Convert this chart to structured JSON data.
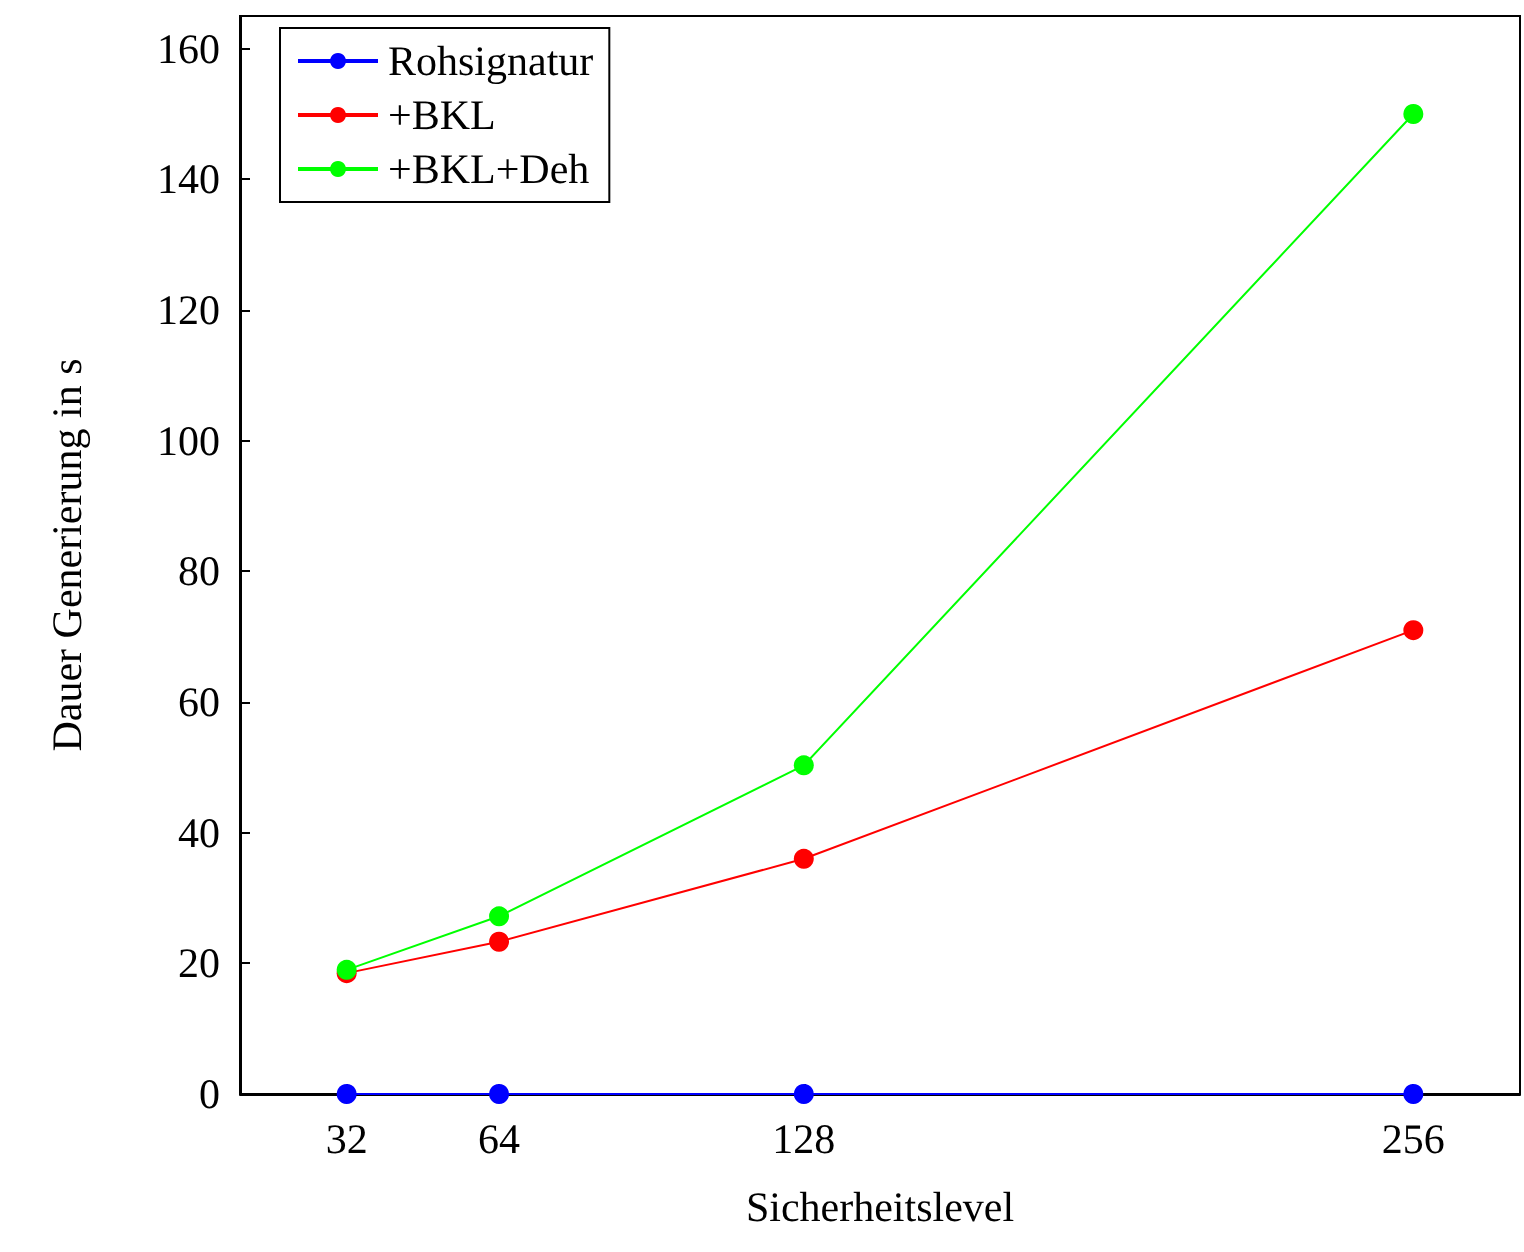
{
  "chart_data": {
    "type": "line",
    "xlabel": "Sicherheitslevel",
    "ylabel": "Dauer Generierung in s",
    "x": [
      32,
      64,
      128,
      256
    ],
    "xlim": [
      9.6,
      278.4
    ],
    "xticks": [
      32,
      64,
      128,
      256
    ],
    "ylim": [
      0,
      165
    ],
    "yticks": [
      0,
      20,
      40,
      60,
      80,
      100,
      120,
      140,
      160
    ],
    "grid": false,
    "legend": "top left",
    "marker": "circle",
    "line_style": "solid",
    "series": [
      {
        "name": "Rohsignatur",
        "color": "#0000ff",
        "values": [
          0,
          0,
          0,
          0
        ]
      },
      {
        "name": "+BKL",
        "color": "#ff0000",
        "values": [
          18.5,
          23.3,
          36,
          71
        ]
      },
      {
        "name": "+BKL+Deh",
        "color": "#00ff00",
        "values": [
          19,
          27.2,
          50.3,
          150
        ]
      }
    ]
  }
}
